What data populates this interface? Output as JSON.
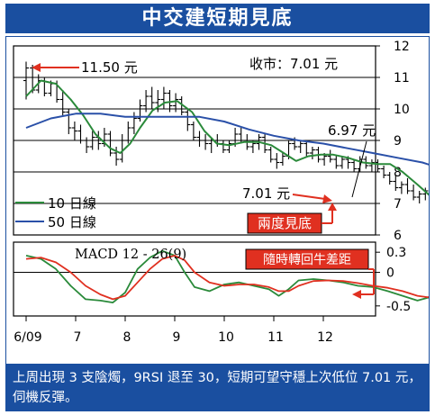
{
  "title": "中交建短期見底",
  "footer_text": "上周出現 3 支陰燭，9RSI 退至 30，短期可望守穩上次低位 7.01 元，伺機反彈。",
  "colors": {
    "brand_blue": "#1a4fa0",
    "price": "#000000",
    "ma10": "#2a8a3a",
    "ma50": "#2a50a8",
    "macd": "#2a8a3a",
    "signal": "#e03020",
    "label_red": "#e03020",
    "arrow_red": "#e03020"
  },
  "chart_data": [
    {
      "type": "line",
      "name": "price-panel",
      "x_ticks": [
        "6/09",
        "7",
        "8",
        "9",
        "10",
        "11",
        "12"
      ],
      "y_ticks": [
        6,
        7,
        8,
        9,
        10,
        11,
        12
      ],
      "ylim": [
        6,
        12
      ],
      "close_label": "收市：7.01 元",
      "grid": true,
      "legend": "bottom-left",
      "series": [
        {
          "name": "10 日線",
          "points": [
            [
              0.0,
              10.4
            ],
            [
              0.3,
              10.9
            ],
            [
              0.6,
              10.8
            ],
            [
              0.9,
              10.3
            ],
            [
              1.15,
              9.8
            ],
            [
              1.4,
              9.2
            ],
            [
              1.7,
              8.75
            ],
            [
              1.9,
              8.6
            ],
            [
              2.1,
              8.9
            ],
            [
              2.3,
              9.4
            ],
            [
              2.55,
              9.95
            ],
            [
              2.8,
              10.2
            ],
            [
              3.05,
              10.25
            ],
            [
              3.35,
              9.9
            ],
            [
              3.6,
              9.3
            ],
            [
              3.85,
              8.9
            ],
            [
              4.1,
              8.85
            ],
            [
              4.4,
              8.95
            ],
            [
              4.7,
              8.95
            ],
            [
              4.95,
              8.85
            ],
            [
              5.2,
              8.6
            ],
            [
              5.45,
              8.35
            ],
            [
              5.7,
              8.5
            ],
            [
              5.95,
              8.55
            ],
            [
              6.2,
              8.55
            ],
            [
              6.5,
              8.45
            ],
            [
              6.8,
              8.3
            ],
            [
              7.1,
              8.25
            ],
            [
              7.35,
              8.25
            ],
            [
              7.6,
              8.0
            ],
            [
              7.9,
              7.6
            ],
            [
              8.15,
              7.25
            ],
            [
              8.35,
              7.05
            ],
            [
              8.5,
              7.05
            ]
          ]
        },
        {
          "name": "50 日線",
          "points": [
            [
              0.0,
              9.4
            ],
            [
              0.5,
              9.7
            ],
            [
              1.0,
              9.85
            ],
            [
              1.5,
              9.85
            ],
            [
              2.0,
              9.75
            ],
            [
              2.5,
              9.75
            ],
            [
              3.0,
              9.75
            ],
            [
              3.5,
              9.75
            ],
            [
              4.0,
              9.6
            ],
            [
              4.5,
              9.35
            ],
            [
              5.0,
              9.15
            ],
            [
              5.5,
              9.0
            ],
            [
              6.0,
              8.9
            ],
            [
              6.5,
              8.75
            ],
            [
              7.0,
              8.6
            ],
            [
              7.5,
              8.45
            ],
            [
              8.0,
              8.3
            ],
            [
              8.3,
              8.15
            ],
            [
              8.5,
              8.05
            ]
          ]
        }
      ],
      "price_candles": [
        [
          0.0,
          10.9,
          11.5,
          10.3,
          11.3
        ],
        [
          0.13,
          11.3,
          11.4,
          10.5,
          10.6
        ],
        [
          0.25,
          10.6,
          11.1,
          10.5,
          10.9
        ],
        [
          0.37,
          10.9,
          11.0,
          10.4,
          10.5
        ],
        [
          0.5,
          10.5,
          10.9,
          10.4,
          10.8
        ],
        [
          0.62,
          10.8,
          10.9,
          10.2,
          10.3
        ],
        [
          0.74,
          10.3,
          10.6,
          9.8,
          9.9
        ],
        [
          0.86,
          9.9,
          10.0,
          9.2,
          9.4
        ],
        [
          0.98,
          9.4,
          9.6,
          9.0,
          9.3
        ],
        [
          1.1,
          9.3,
          9.5,
          8.9,
          9.0
        ],
        [
          1.22,
          9.0,
          9.1,
          8.6,
          8.8
        ],
        [
          1.34,
          8.8,
          9.3,
          8.7,
          9.1
        ],
        [
          1.46,
          9.1,
          9.3,
          8.7,
          8.9
        ],
        [
          1.58,
          8.9,
          9.4,
          8.8,
          9.2
        ],
        [
          1.7,
          9.2,
          9.3,
          8.5,
          8.6
        ],
        [
          1.82,
          8.6,
          8.8,
          8.2,
          8.4
        ],
        [
          1.94,
          8.4,
          9.2,
          8.3,
          9.0
        ],
        [
          2.06,
          9.0,
          9.6,
          8.9,
          9.4
        ],
        [
          2.18,
          9.4,
          9.9,
          9.2,
          9.7
        ],
        [
          2.3,
          9.7,
          10.3,
          9.6,
          10.1
        ],
        [
          2.42,
          10.1,
          10.6,
          9.9,
          10.4
        ],
        [
          2.54,
          10.4,
          10.7,
          10.0,
          10.2
        ],
        [
          2.66,
          10.2,
          10.6,
          9.9,
          10.3
        ],
        [
          2.78,
          10.3,
          10.7,
          10.0,
          10.5
        ],
        [
          2.9,
          10.5,
          10.6,
          9.9,
          10.1
        ],
        [
          3.02,
          10.1,
          10.5,
          9.9,
          10.3
        ],
        [
          3.14,
          10.3,
          10.4,
          9.8,
          9.9
        ],
        [
          3.26,
          9.9,
          10.0,
          9.3,
          9.5
        ],
        [
          3.38,
          9.5,
          9.6,
          9.0,
          9.1
        ],
        [
          3.5,
          9.1,
          9.3,
          8.8,
          9.0
        ],
        [
          3.62,
          9.0,
          9.2,
          8.7,
          8.9
        ],
        [
          3.74,
          8.9,
          9.1,
          8.6,
          9.0
        ],
        [
          3.86,
          9.0,
          9.2,
          8.8,
          8.9
        ],
        [
          3.98,
          8.9,
          9.0,
          8.6,
          8.7
        ],
        [
          4.1,
          8.7,
          9.0,
          8.6,
          8.9
        ],
        [
          4.22,
          8.9,
          9.4,
          8.8,
          9.2
        ],
        [
          4.34,
          9.2,
          9.4,
          8.9,
          9.0
        ],
        [
          4.46,
          9.0,
          9.2,
          8.7,
          8.8
        ],
        [
          4.58,
          8.8,
          9.0,
          8.6,
          8.9
        ],
        [
          4.7,
          8.9,
          9.2,
          8.7,
          9.1
        ],
        [
          4.82,
          9.1,
          9.2,
          8.6,
          8.7
        ],
        [
          4.94,
          8.7,
          8.8,
          8.3,
          8.4
        ],
        [
          5.06,
          8.4,
          8.6,
          8.1,
          8.3
        ],
        [
          5.18,
          8.3,
          8.6,
          8.2,
          8.5
        ],
        [
          5.3,
          8.5,
          9.0,
          8.4,
          8.9
        ],
        [
          5.42,
          8.9,
          9.1,
          8.7,
          8.8
        ],
        [
          5.54,
          8.8,
          9.0,
          8.6,
          8.9
        ],
        [
          5.66,
          8.9,
          9.0,
          8.5,
          8.6
        ],
        [
          5.78,
          8.6,
          8.8,
          8.4,
          8.7
        ],
        [
          5.9,
          8.7,
          8.8,
          8.3,
          8.4
        ],
        [
          6.02,
          8.4,
          8.6,
          8.2,
          8.5
        ],
        [
          6.14,
          8.5,
          8.7,
          8.3,
          8.4
        ],
        [
          6.26,
          8.4,
          8.5,
          8.1,
          8.2
        ],
        [
          6.38,
          8.2,
          8.5,
          8.1,
          8.4
        ],
        [
          6.5,
          8.4,
          8.5,
          8.1,
          8.3
        ],
        [
          6.62,
          8.3,
          8.4,
          8.0,
          8.1
        ],
        [
          6.74,
          8.1,
          8.5,
          8.0,
          8.4
        ],
        [
          6.86,
          8.4,
          8.5,
          8.1,
          8.2
        ],
        [
          6.98,
          8.2,
          8.4,
          8.0,
          8.3
        ],
        [
          7.1,
          8.3,
          8.4,
          8.0,
          8.1
        ],
        [
          7.22,
          8.1,
          8.2,
          7.8,
          7.9
        ],
        [
          7.34,
          7.9,
          8.0,
          7.6,
          7.7
        ],
        [
          7.46,
          7.7,
          7.9,
          7.4,
          7.5
        ],
        [
          7.58,
          7.5,
          7.7,
          7.3,
          7.6
        ],
        [
          7.7,
          7.6,
          7.8,
          7.3,
          7.4
        ],
        [
          7.82,
          7.4,
          7.6,
          7.1,
          7.2
        ],
        [
          7.94,
          7.2,
          7.4,
          7.0,
          7.3
        ],
        [
          8.06,
          7.3,
          7.5,
          7.1,
          7.4
        ],
        [
          8.18,
          7.4,
          7.5,
          7.1,
          7.2
        ],
        [
          8.3,
          7.2,
          7.3,
          6.97,
          7.01
        ]
      ],
      "annotations": [
        {
          "text": "11.50 元",
          "x": 0.1,
          "y": 11.5
        },
        {
          "text": "6.97 元",
          "x": 8.3,
          "y": 6.97
        },
        {
          "text": "7.01 元",
          "x": 7.7,
          "y": 7.01
        },
        {
          "text": "兩度見底",
          "style": "red-box"
        }
      ]
    },
    {
      "type": "line",
      "name": "macd-panel",
      "title": "MACD 12 - 26(9)",
      "y_ticks": [
        0.3,
        0,
        -0.5
      ],
      "ylim": [
        -0.65,
        0.45
      ],
      "series": [
        {
          "name": "MACD",
          "points": [
            [
              0.0,
              0.25
            ],
            [
              0.3,
              0.2
            ],
            [
              0.6,
              0.05
            ],
            [
              0.9,
              -0.2
            ],
            [
              1.2,
              -0.4
            ],
            [
              1.5,
              -0.42
            ],
            [
              1.75,
              -0.45
            ],
            [
              2.0,
              -0.3
            ],
            [
              2.25,
              0.05
            ],
            [
              2.5,
              0.22
            ],
            [
              2.75,
              0.32
            ],
            [
              3.0,
              0.25
            ],
            [
              3.2,
              0.0
            ],
            [
              3.4,
              -0.22
            ],
            [
              3.7,
              -0.28
            ],
            [
              4.0,
              -0.18
            ],
            [
              4.3,
              -0.15
            ],
            [
              4.6,
              -0.2
            ],
            [
              4.9,
              -0.25
            ],
            [
              5.1,
              -0.35
            ],
            [
              5.3,
              -0.25
            ],
            [
              5.5,
              -0.12
            ],
            [
              5.8,
              -0.1
            ],
            [
              6.1,
              -0.12
            ],
            [
              6.4,
              -0.15
            ],
            [
              6.7,
              -0.2
            ],
            [
              7.0,
              -0.22
            ],
            [
              7.3,
              -0.28
            ],
            [
              7.6,
              -0.35
            ],
            [
              7.9,
              -0.42
            ],
            [
              8.1,
              -0.38
            ],
            [
              8.3,
              -0.35
            ],
            [
              8.5,
              -0.36
            ]
          ]
        },
        {
          "name": "Signal",
          "points": [
            [
              0.0,
              0.2
            ],
            [
              0.3,
              0.22
            ],
            [
              0.6,
              0.15
            ],
            [
              0.9,
              0.0
            ],
            [
              1.2,
              -0.2
            ],
            [
              1.5,
              -0.33
            ],
            [
              1.75,
              -0.4
            ],
            [
              2.0,
              -0.35
            ],
            [
              2.25,
              -0.15
            ],
            [
              2.5,
              0.05
            ],
            [
              2.75,
              0.2
            ],
            [
              3.0,
              0.25
            ],
            [
              3.2,
              0.18
            ],
            [
              3.4,
              0.0
            ],
            [
              3.7,
              -0.15
            ],
            [
              4.0,
              -0.2
            ],
            [
              4.3,
              -0.18
            ],
            [
              4.6,
              -0.18
            ],
            [
              4.9,
              -0.22
            ],
            [
              5.1,
              -0.28
            ],
            [
              5.3,
              -0.28
            ],
            [
              5.5,
              -0.2
            ],
            [
              5.8,
              -0.13
            ],
            [
              6.1,
              -0.12
            ],
            [
              6.4,
              -0.13
            ],
            [
              6.7,
              -0.16
            ],
            [
              7.0,
              -0.2
            ],
            [
              7.3,
              -0.23
            ],
            [
              7.6,
              -0.28
            ],
            [
              7.9,
              -0.35
            ],
            [
              8.1,
              -0.37
            ],
            [
              8.3,
              -0.36
            ],
            [
              8.5,
              -0.35
            ]
          ]
        }
      ],
      "annotations": [
        {
          "text": "隨時轉回牛差距",
          "style": "red-box"
        }
      ]
    }
  ]
}
